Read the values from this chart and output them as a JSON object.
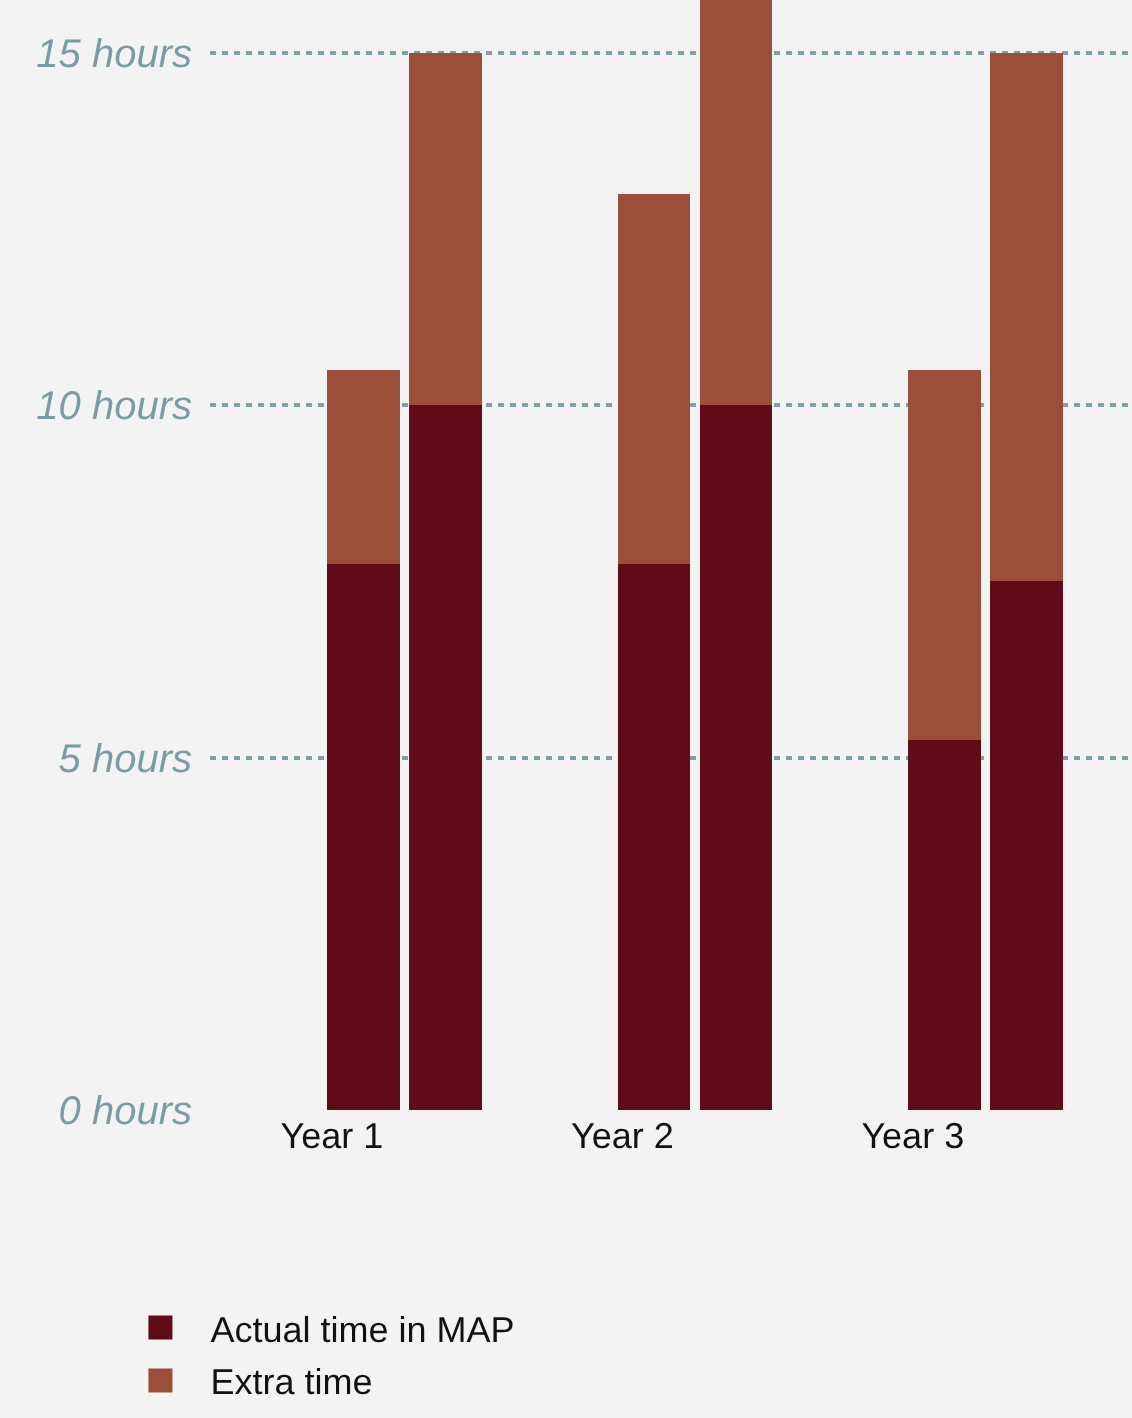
{
  "chart_data": {
    "type": "bar",
    "categories": [
      "Year 1",
      null,
      "Year 2",
      null,
      "Year 3",
      null
    ],
    "series": [
      {
        "name": "Actual time in MAP",
        "color": "#600a1a",
        "values": [
          7.75,
          10,
          7.75,
          10,
          5.25,
          7.5
        ]
      },
      {
        "name": "Extra time",
        "color": "#9b4f3a",
        "values": [
          2.75,
          5,
          5.25,
          5.75,
          5.25,
          7.5
        ]
      }
    ],
    "stacked": true,
    "ylim": [
      0,
      15.75
    ],
    "yticks": [
      {
        "value": 0,
        "label": "0 hours"
      },
      {
        "value": 5,
        "label": "5 hours"
      },
      {
        "value": 10,
        "label": "10 hours"
      },
      {
        "value": 15,
        "label": "15 hours"
      }
    ],
    "grid": "y",
    "legend": "bottom"
  }
}
